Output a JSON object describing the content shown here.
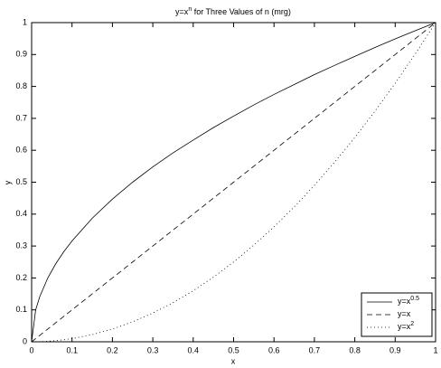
{
  "chart_data": {
    "type": "line",
    "title": [
      "y=x",
      "n",
      " for Three Values of n (mrg)"
    ],
    "xlabel": "x",
    "ylabel": "y",
    "x": [
      0,
      0.01,
      0.02,
      0.04,
      0.06,
      0.08,
      0.1,
      0.15,
      0.2,
      0.25,
      0.3,
      0.35,
      0.4,
      0.45,
      0.5,
      0.55,
      0.6,
      0.65,
      0.7,
      0.75,
      0.8,
      0.85,
      0.9,
      0.95,
      1
    ],
    "series": [
      {
        "name": [
          "y=x",
          "0.5"
        ],
        "color": "#000000",
        "linestyle": "solid",
        "values": [
          0,
          0.1,
          0.141,
          0.2,
          0.245,
          0.283,
          0.316,
          0.387,
          0.447,
          0.5,
          0.548,
          0.592,
          0.632,
          0.671,
          0.707,
          0.742,
          0.775,
          0.806,
          0.837,
          0.866,
          0.894,
          0.922,
          0.949,
          0.975,
          1
        ]
      },
      {
        "name": [
          "y=x"
        ],
        "color": "#000000",
        "linestyle": "dashed",
        "values": [
          0,
          0.01,
          0.02,
          0.04,
          0.06,
          0.08,
          0.1,
          0.15,
          0.2,
          0.25,
          0.3,
          0.35,
          0.4,
          0.45,
          0.5,
          0.55,
          0.6,
          0.65,
          0.7,
          0.75,
          0.8,
          0.85,
          0.9,
          0.95,
          1
        ]
      },
      {
        "name": [
          "y=x",
          "2"
        ],
        "color": "#000000",
        "linestyle": "dotted",
        "values": [
          0,
          0.0001,
          0.0004,
          0.0016,
          0.0036,
          0.0064,
          0.01,
          0.0225,
          0.04,
          0.0625,
          0.09,
          0.1225,
          0.16,
          0.2025,
          0.25,
          0.3025,
          0.36,
          0.4225,
          0.49,
          0.5625,
          0.64,
          0.7225,
          0.81,
          0.9025,
          1
        ]
      }
    ],
    "xlim": [
      0,
      1
    ],
    "ylim": [
      0,
      1
    ],
    "xticks": [
      0,
      0.1,
      0.2,
      0.3,
      0.4,
      0.5,
      0.6,
      0.7,
      0.8,
      0.9,
      1
    ],
    "yticks": [
      0,
      0.1,
      0.2,
      0.3,
      0.4,
      0.5,
      0.6,
      0.7,
      0.8,
      0.9,
      1
    ],
    "grid": false,
    "legend": "lower right"
  }
}
